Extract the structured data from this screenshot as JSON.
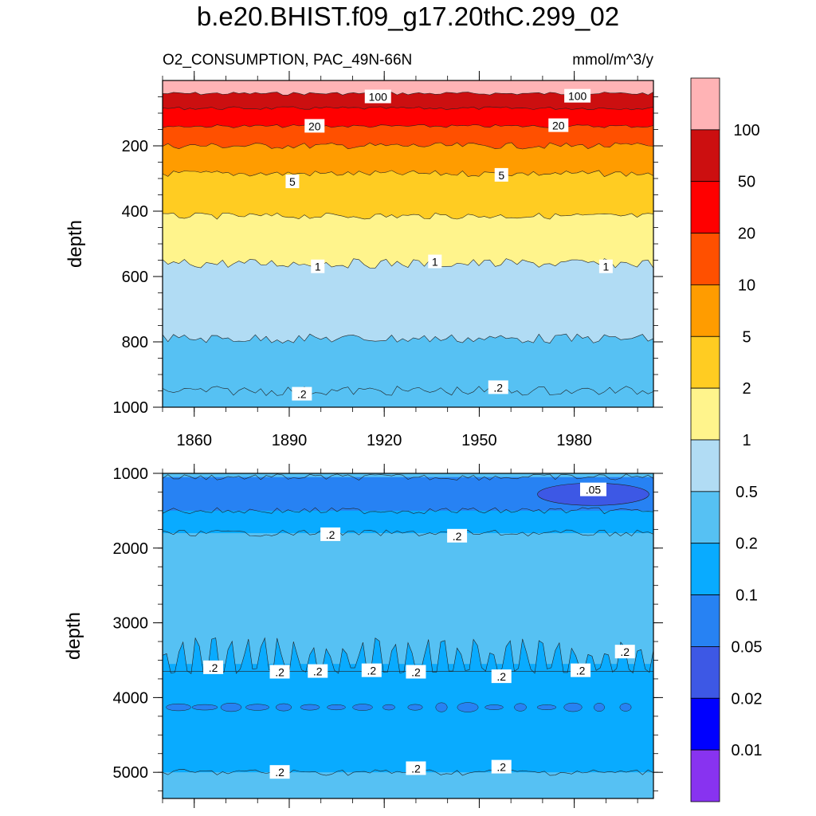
{
  "title": "b.e20.BHIST.f09_g17.20thC.299_02",
  "subtitle_left": "O2_CONSUMPTION, PAC_49N-66N",
  "subtitle_right": "mmol/m^3/y",
  "chart_data": [
    {
      "type": "heatmap",
      "panel": "upper",
      "xlabel": "",
      "ylabel": "depth",
      "xlim": [
        1850,
        2005
      ],
      "ylim": [
        1000,
        0
      ],
      "xticks": [
        "1860",
        "1890",
        "1920",
        "1950",
        "1980"
      ],
      "xtick_values": [
        1860,
        1890,
        1920,
        1950,
        1980
      ],
      "yticks": [
        "200",
        "400",
        "600",
        "800",
        "1000"
      ],
      "ytick_values": [
        200,
        400,
        600,
        800,
        1000
      ],
      "contour_depths": [
        {
          "level": 100,
          "depth": 40
        },
        {
          "level": 50,
          "depth": 85
        },
        {
          "level": 20,
          "depth": 140
        },
        {
          "level": 10,
          "depth": 200
        },
        {
          "level": 5,
          "depth": 285
        },
        {
          "level": 2,
          "depth": 415
        },
        {
          "level": 1,
          "depth": 560
        },
        {
          "level": 0.5,
          "depth": 790
        },
        {
          "level": 0.2,
          "depth": 950
        }
      ],
      "bottom_value": 0.2,
      "contour_labels": [
        {
          "text": "100",
          "year": 1918,
          "depth": 50
        },
        {
          "text": "100",
          "year": 1981,
          "depth": 48
        },
        {
          "text": "20",
          "year": 1898,
          "depth": 140
        },
        {
          "text": "20",
          "year": 1975,
          "depth": 138
        },
        {
          "text": "5",
          "year": 1891,
          "depth": 310
        },
        {
          "text": "5",
          "year": 1957,
          "depth": 290
        },
        {
          "text": "1",
          "year": 1899,
          "depth": 570
        },
        {
          "text": "1",
          "year": 1936,
          "depth": 555
        },
        {
          "text": "1",
          "year": 1990,
          "depth": 570
        },
        {
          "text": ".2",
          "year": 1894,
          "depth": 960
        },
        {
          "text": ".2",
          "year": 1956,
          "depth": 940
        }
      ]
    },
    {
      "type": "heatmap",
      "panel": "lower",
      "xlabel": "",
      "ylabel": "depth",
      "xlim": [
        1850,
        2005
      ],
      "ylim": [
        5350,
        1000
      ],
      "xtick_values": [
        1860,
        1890,
        1920,
        1950,
        1980
      ],
      "yticks": [
        "1000",
        "2000",
        "3000",
        "4000",
        "5000"
      ],
      "ytick_values": [
        1000,
        2000,
        3000,
        4000,
        5000
      ],
      "bands": [
        {
          "value": 0.2,
          "top": 1000,
          "bottom": 1050
        },
        {
          "value": 0.05,
          "top": 1050,
          "bottom": 1500
        },
        {
          "value": 0.1,
          "top": 1500,
          "bottom": 1800
        },
        {
          "value": 0.2,
          "top": 1800,
          "bottom": 3550
        },
        {
          "value": 0.1,
          "top": 3550,
          "bottom": 5000
        },
        {
          "value": 0.2,
          "top": 5000,
          "bottom": 5350
        }
      ],
      "contour_labels": [
        {
          "text": ".05",
          "year": 1986,
          "depth": 1220
        },
        {
          "text": ".2",
          "year": 1903,
          "depth": 1820
        },
        {
          "text": ".2",
          "year": 1943,
          "depth": 1840
        },
        {
          "text": ".2",
          "year": 1866,
          "depth": 3600
        },
        {
          "text": ".2",
          "year": 1887,
          "depth": 3660
        },
        {
          "text": ".2",
          "year": 1899,
          "depth": 3650
        },
        {
          "text": ".2",
          "year": 1916,
          "depth": 3640
        },
        {
          "text": ".2",
          "year": 1930,
          "depth": 3660
        },
        {
          "text": ".2",
          "year": 1957,
          "depth": 3720
        },
        {
          "text": ".2",
          "year": 1982,
          "depth": 3640
        },
        {
          "text": ".2",
          "year": 1996,
          "depth": 3390
        },
        {
          "text": ".2",
          "year": 1887,
          "depth": 5000
        },
        {
          "text": ".2",
          "year": 1930,
          "depth": 4950
        },
        {
          "text": ".2",
          "year": 1957,
          "depth": 4930
        }
      ]
    }
  ],
  "colorbar": {
    "labels": [
      "100",
      "50",
      "20",
      "10",
      "5",
      "2",
      "1",
      "0.5",
      "0.2",
      "0.1",
      "0.05",
      "0.02",
      "0.01"
    ],
    "colors": [
      "#FFB3B5",
      "#CC0F10",
      "#FF0000",
      "#FF5000",
      "#FF9C00",
      "#FFCC22",
      "#FFF48C",
      "#B1DCF4",
      "#56C1F3",
      "#09ABFF",
      "#2782F3",
      "#3D58E5",
      "#0000FF",
      "#8833F0"
    ]
  }
}
